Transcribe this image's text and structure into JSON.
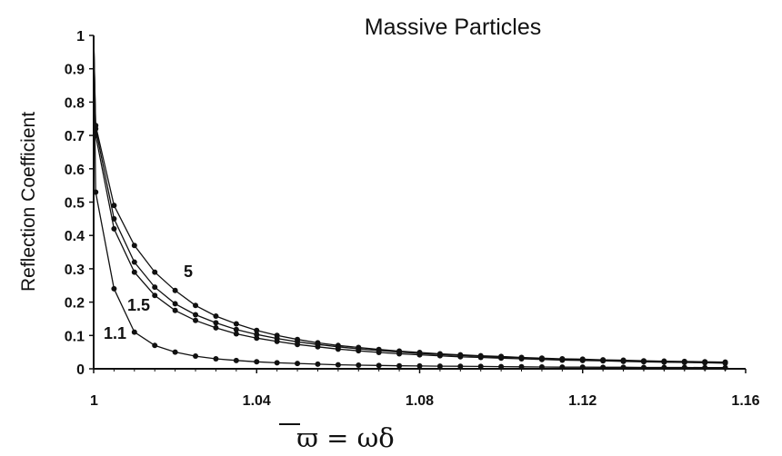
{
  "chart_data": {
    "type": "line",
    "title": "Massive Particles",
    "xlabel": "ϖ = ωδ",
    "ylabel": "Reflection Coefficient",
    "xlim": [
      1,
      1.16
    ],
    "ylim": [
      0,
      1
    ],
    "xticks": [
      "1",
      "1.04",
      "1.08",
      "1.12",
      "1.16"
    ],
    "yticks": [
      "0",
      "0.1",
      "0.2",
      "0.3",
      "0.4",
      "0.5",
      "0.6",
      "0.7",
      "0.8",
      "0.9",
      "1"
    ],
    "grid": false,
    "legend": "none",
    "series": [
      {
        "name": "1.1",
        "x": [
          1.0005,
          1.005,
          1.01,
          1.015,
          1.02,
          1.025,
          1.03,
          1.035,
          1.04,
          1.045,
          1.05,
          1.055,
          1.06,
          1.065,
          1.07,
          1.075,
          1.08,
          1.085,
          1.09,
          1.095,
          1.1,
          1.105,
          1.11,
          1.115,
          1.12,
          1.125,
          1.13,
          1.135,
          1.14,
          1.145,
          1.15,
          1.155
        ],
        "y": [
          0.53,
          0.24,
          0.11,
          0.07,
          0.05,
          0.038,
          0.03,
          0.025,
          0.021,
          0.018,
          0.016,
          0.014,
          0.012,
          0.011,
          0.01,
          0.009,
          0.0085,
          0.008,
          0.0075,
          0.007,
          0.0065,
          0.006,
          0.0055,
          0.005,
          0.005,
          0.0045,
          0.0045,
          0.004,
          0.004,
          0.004,
          0.0035,
          0.0035
        ]
      },
      {
        "name": "1.5",
        "x": [
          1.0005,
          1.005,
          1.01,
          1.015,
          1.02,
          1.025,
          1.03,
          1.035,
          1.04,
          1.045,
          1.05,
          1.055,
          1.06,
          1.065,
          1.07,
          1.075,
          1.08,
          1.085,
          1.09,
          1.095,
          1.1,
          1.105,
          1.11,
          1.115,
          1.12,
          1.125,
          1.13,
          1.135,
          1.14,
          1.145,
          1.15,
          1.155
        ],
        "y": [
          0.7,
          0.42,
          0.29,
          0.22,
          0.175,
          0.145,
          0.123,
          0.105,
          0.092,
          0.082,
          0.073,
          0.066,
          0.059,
          0.054,
          0.049,
          0.045,
          0.042,
          0.039,
          0.036,
          0.034,
          0.032,
          0.03,
          0.028,
          0.026,
          0.025,
          0.024,
          0.022,
          0.021,
          0.02,
          0.019,
          0.018,
          0.017
        ]
      },
      {
        "name": "",
        "x": [
          1.0005,
          1.005,
          1.01,
          1.015,
          1.02,
          1.025,
          1.03,
          1.035,
          1.04,
          1.045,
          1.05,
          1.055,
          1.06,
          1.065,
          1.07,
          1.075,
          1.08,
          1.085,
          1.09,
          1.095,
          1.1,
          1.105,
          1.11,
          1.115,
          1.12,
          1.125,
          1.13,
          1.135,
          1.14,
          1.145,
          1.15,
          1.155
        ],
        "y": [
          0.72,
          0.45,
          0.32,
          0.245,
          0.195,
          0.162,
          0.138,
          0.118,
          0.103,
          0.091,
          0.081,
          0.073,
          0.066,
          0.06,
          0.055,
          0.05,
          0.046,
          0.043,
          0.04,
          0.037,
          0.035,
          0.033,
          0.031,
          0.029,
          0.027,
          0.026,
          0.024,
          0.023,
          0.022,
          0.021,
          0.02,
          0.019
        ]
      },
      {
        "name": "5",
        "x": [
          1.0005,
          1.005,
          1.01,
          1.015,
          1.02,
          1.025,
          1.03,
          1.035,
          1.04,
          1.045,
          1.05,
          1.055,
          1.06,
          1.065,
          1.07,
          1.075,
          1.08,
          1.085,
          1.09,
          1.095,
          1.1,
          1.105,
          1.11,
          1.115,
          1.12,
          1.125,
          1.13,
          1.135,
          1.14,
          1.145,
          1.15,
          1.155
        ],
        "y": [
          0.73,
          0.49,
          0.37,
          0.29,
          0.235,
          0.19,
          0.158,
          0.135,
          0.115,
          0.1,
          0.088,
          0.078,
          0.07,
          0.064,
          0.058,
          0.053,
          0.049,
          0.045,
          0.042,
          0.039,
          0.037,
          0.034,
          0.032,
          0.03,
          0.029,
          0.027,
          0.026,
          0.024,
          0.023,
          0.022,
          0.021,
          0.02
        ]
      }
    ]
  }
}
